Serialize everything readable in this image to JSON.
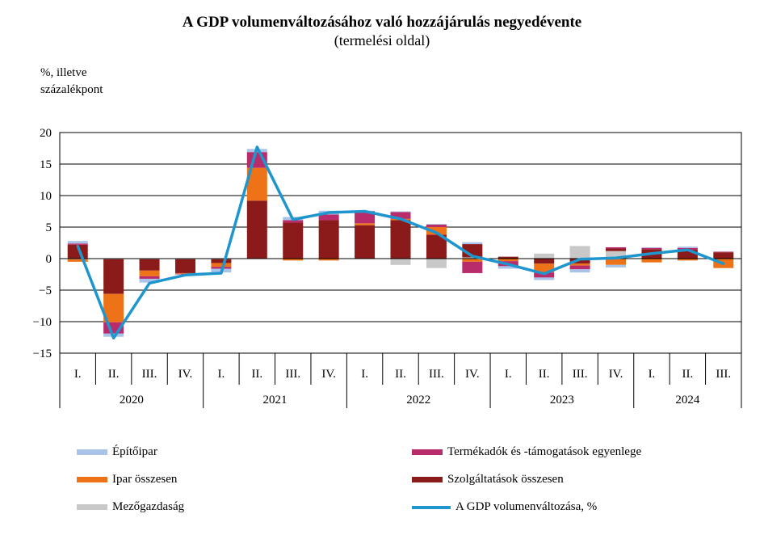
{
  "chart_data": {
    "type": "bar",
    "title": "A GDP volumenváltozásához való hozzájárulás negyedévente",
    "subtitle": "(termelési oldal)",
    "ylabel_line1": "%, illetve",
    "ylabel_line2": "százalékpont",
    "ylim": [
      -15,
      20
    ],
    "yticks": [
      20,
      15,
      10,
      5,
      0,
      -5,
      -10,
      -15
    ],
    "ytick_labels": [
      "20",
      "15",
      "10",
      "5",
      "0",
      "−5",
      "−10",
      "−15"
    ],
    "grid": true,
    "categories": [
      "I.",
      "II.",
      "III.",
      "IV.",
      "I.",
      "II.",
      "III.",
      "IV.",
      "I.",
      "II.",
      "III.",
      "IV.",
      "I.",
      "II.",
      "III.",
      "IV.",
      "I.",
      "II.",
      "III."
    ],
    "years": [
      {
        "label": "2020",
        "count": 4
      },
      {
        "label": "2021",
        "count": 4
      },
      {
        "label": "2022",
        "count": 4
      },
      {
        "label": "2023",
        "count": 4
      },
      {
        "label": "2024",
        "count": 3
      }
    ],
    "legend_position": "bottom",
    "series": [
      {
        "name": "Mezőgazdaság",
        "color": "#c8c8c8",
        "values": [
          -0.1,
          -0.1,
          -0.1,
          -0.1,
          -0.1,
          0.0,
          0.0,
          0.0,
          0.0,
          -1.0,
          -1.5,
          0.2,
          0.0,
          0.8,
          2.0,
          1.2,
          0.0,
          0.0,
          0.0
        ]
      },
      {
        "name": "Szolgáltatások összesen",
        "color": "#8b1a1a",
        "values": [
          2.2,
          -5.5,
          -1.8,
          -2.2,
          -0.6,
          9.2,
          5.7,
          6.1,
          5.3,
          6.1,
          3.8,
          2.1,
          0.3,
          -0.8,
          -0.8,
          0.4,
          1.5,
          1.4,
          1.0
        ]
      },
      {
        "name": "Ipar összesen",
        "color": "#ee7218",
        "values": [
          -0.4,
          -4.5,
          -0.9,
          -0.1,
          -0.6,
          5.2,
          -0.3,
          -0.3,
          0.3,
          0.2,
          1.2,
          -0.5,
          -0.4,
          -1.4,
          -0.3,
          -1.0,
          -0.6,
          -0.3,
          -1.5
        ]
      },
      {
        "name": "Termékadók és -támogatások egyenlege",
        "color": "#b82c6c",
        "values": [
          0.2,
          -1.8,
          -0.4,
          -0.1,
          -0.3,
          2.5,
          0.4,
          0.9,
          1.9,
          1.1,
          0.4,
          -1.8,
          -0.8,
          -0.8,
          -0.6,
          0.2,
          0.2,
          0.3,
          0.1
        ]
      },
      {
        "name": "Építőipar",
        "color": "#a9c4e8",
        "values": [
          0.4,
          -0.5,
          -0.6,
          0.0,
          -0.6,
          0.5,
          0.5,
          0.6,
          0.1,
          0.1,
          0.1,
          0.3,
          -0.4,
          -0.4,
          -0.5,
          -0.4,
          0.1,
          0.2,
          0.0
        ]
      }
    ],
    "line": {
      "name": "A GDP volumenváltozása, %",
      "color": "#1e96cd",
      "values": [
        2.0,
        -12.6,
        -3.9,
        -2.6,
        -2.3,
        17.7,
        6.2,
        7.3,
        7.5,
        6.3,
        4.1,
        0.4,
        -0.9,
        -2.4,
        -0.1,
        0.1,
        0.8,
        1.4,
        -0.8
      ]
    },
    "legend": [
      {
        "name": "Építőipar",
        "color": "#a9c4e8",
        "kind": "bar"
      },
      {
        "name": "Termékadók és -támogatások egyenlege",
        "color": "#b82c6c",
        "kind": "bar"
      },
      {
        "name": "Ipar összesen",
        "color": "#ee7218",
        "kind": "bar"
      },
      {
        "name": "Szolgáltatások összesen",
        "color": "#8b1a1a",
        "kind": "bar"
      },
      {
        "name": "Mezőgazdaság",
        "color": "#c8c8c8",
        "kind": "bar"
      },
      {
        "name": "A GDP volumenváltozása, %",
        "color": "#1e96cd",
        "kind": "line"
      }
    ]
  }
}
